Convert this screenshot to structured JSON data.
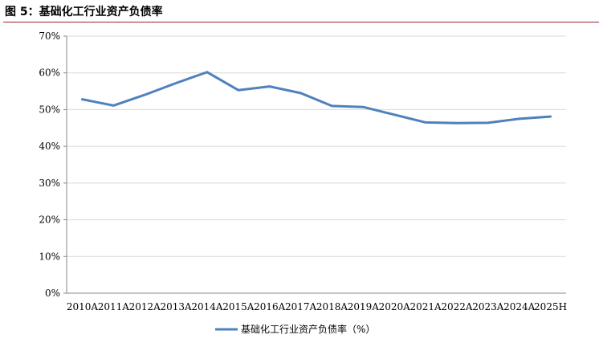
{
  "figure": {
    "title": "图 5：基础化工行业资产负债率"
  },
  "colors": {
    "line": "#4f81bd",
    "grid": "#d9d9d9",
    "axis": "#868686",
    "title_rule": "#9c2230"
  },
  "chart_data": {
    "type": "line",
    "title": "",
    "xlabel": "",
    "ylabel": "",
    "categories": [
      "2010A",
      "2011A",
      "2012A",
      "2013A",
      "2014A",
      "2015A",
      "2016A",
      "2017A",
      "2018A",
      "2019A",
      "2020A",
      "2021A",
      "2022A",
      "2023A",
      "2024A",
      "2025H"
    ],
    "y_ticks": [
      "0%",
      "10%",
      "20%",
      "30%",
      "40%",
      "50%",
      "60%",
      "70%"
    ],
    "ylim": [
      0,
      70
    ],
    "grid": true,
    "legend_position": "bottom-center",
    "series": [
      {
        "name": "基础化工行业资产负债率（%）",
        "values": [
          52.8,
          51.1,
          54.0,
          57.2,
          60.2,
          55.3,
          56.3,
          54.5,
          51.0,
          50.7,
          48.6,
          46.5,
          46.3,
          46.4,
          47.5,
          48.1
        ]
      }
    ]
  }
}
